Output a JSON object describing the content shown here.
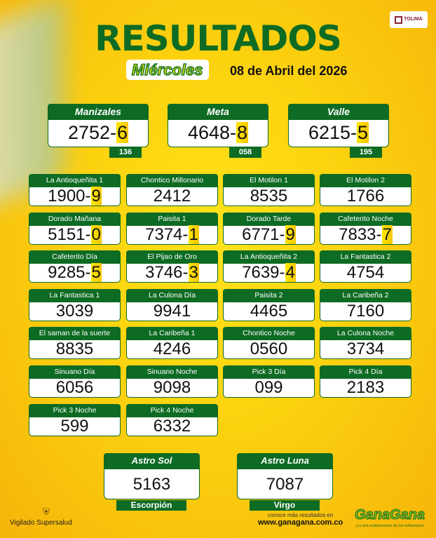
{
  "header": {
    "brand": "TOLIMA",
    "title": "RESULTADOS",
    "day": "Miércoles",
    "date": "08 de Abril del 2026"
  },
  "featured": [
    {
      "label": "Manizales",
      "number": "2752",
      "extra": "6",
      "series": "136"
    },
    {
      "label": "Meta",
      "number": "4648",
      "extra": "8",
      "series": "058"
    },
    {
      "label": "Valle",
      "number": "6215",
      "extra": "5",
      "series": "195"
    }
  ],
  "results": [
    {
      "label": "La Antioqueñita 1",
      "number": "1900",
      "extra": "9"
    },
    {
      "label": "Chontico Millonario",
      "number": "2412",
      "extra": ""
    },
    {
      "label": "El Motilon 1",
      "number": "8535",
      "extra": ""
    },
    {
      "label": "El Motilon 2",
      "number": "1766",
      "extra": ""
    },
    {
      "label": "Dorado Mañana",
      "number": "5151",
      "extra": "0"
    },
    {
      "label": "Paisita 1",
      "number": "7374",
      "extra": "1"
    },
    {
      "label": "Dorado Tarde",
      "number": "6771",
      "extra": "9"
    },
    {
      "label": "Cafeterito Noche",
      "number": "7833",
      "extra": "7"
    },
    {
      "label": "Cafeterito Día",
      "number": "9285",
      "extra": "5"
    },
    {
      "label": "El Pijao de Oro",
      "number": "3746",
      "extra": "3"
    },
    {
      "label": "La Antioqueñita 2",
      "number": "7639",
      "extra": "4"
    },
    {
      "label": "La Fantastica 2",
      "number": "4754",
      "extra": ""
    },
    {
      "label": "La Fantastica 1",
      "number": "3039",
      "extra": ""
    },
    {
      "label": "La Culona Día",
      "number": "9941",
      "extra": ""
    },
    {
      "label": "Paisita 2",
      "number": "4465",
      "extra": ""
    },
    {
      "label": "La Caribeña 2",
      "number": "7160",
      "extra": ""
    },
    {
      "label": "El saman de la suerte",
      "number": "8835",
      "extra": ""
    },
    {
      "label": "La Caribeña 1",
      "number": "4246",
      "extra": ""
    },
    {
      "label": "Chontico Noche",
      "number": "0560",
      "extra": ""
    },
    {
      "label": "La Culona Noche",
      "number": "3734",
      "extra": ""
    },
    {
      "label": "Sinuano Día",
      "number": "6056",
      "extra": ""
    },
    {
      "label": "Sinuano Noche",
      "number": "9098",
      "extra": ""
    },
    {
      "label": "Pick 3 Día",
      "number": "099",
      "extra": ""
    },
    {
      "label": "Pick 4 Día",
      "number": "2183",
      "extra": ""
    },
    {
      "label": "Pick 3 Noche",
      "number": "599",
      "extra": ""
    },
    {
      "label": "Pick 4 Noche",
      "number": "6332",
      "extra": ""
    }
  ],
  "astro": [
    {
      "label": "Astro Sol",
      "number": "5163",
      "sign": "Escorpión"
    },
    {
      "label": "Astro Luna",
      "number": "7087",
      "sign": "Virgo"
    }
  ],
  "footer": {
    "supervisor": "Vigilado Supersalud",
    "more_text": "conoce más resultados en",
    "url": "www.ganagana.com.co",
    "logo": "GanaGana",
    "slogan": "¡La red multiservicios de los tolimenses!"
  },
  "colors": {
    "green": "#0e6b23",
    "yellow": "#fcd20f",
    "highlight": "#ffe600"
  }
}
